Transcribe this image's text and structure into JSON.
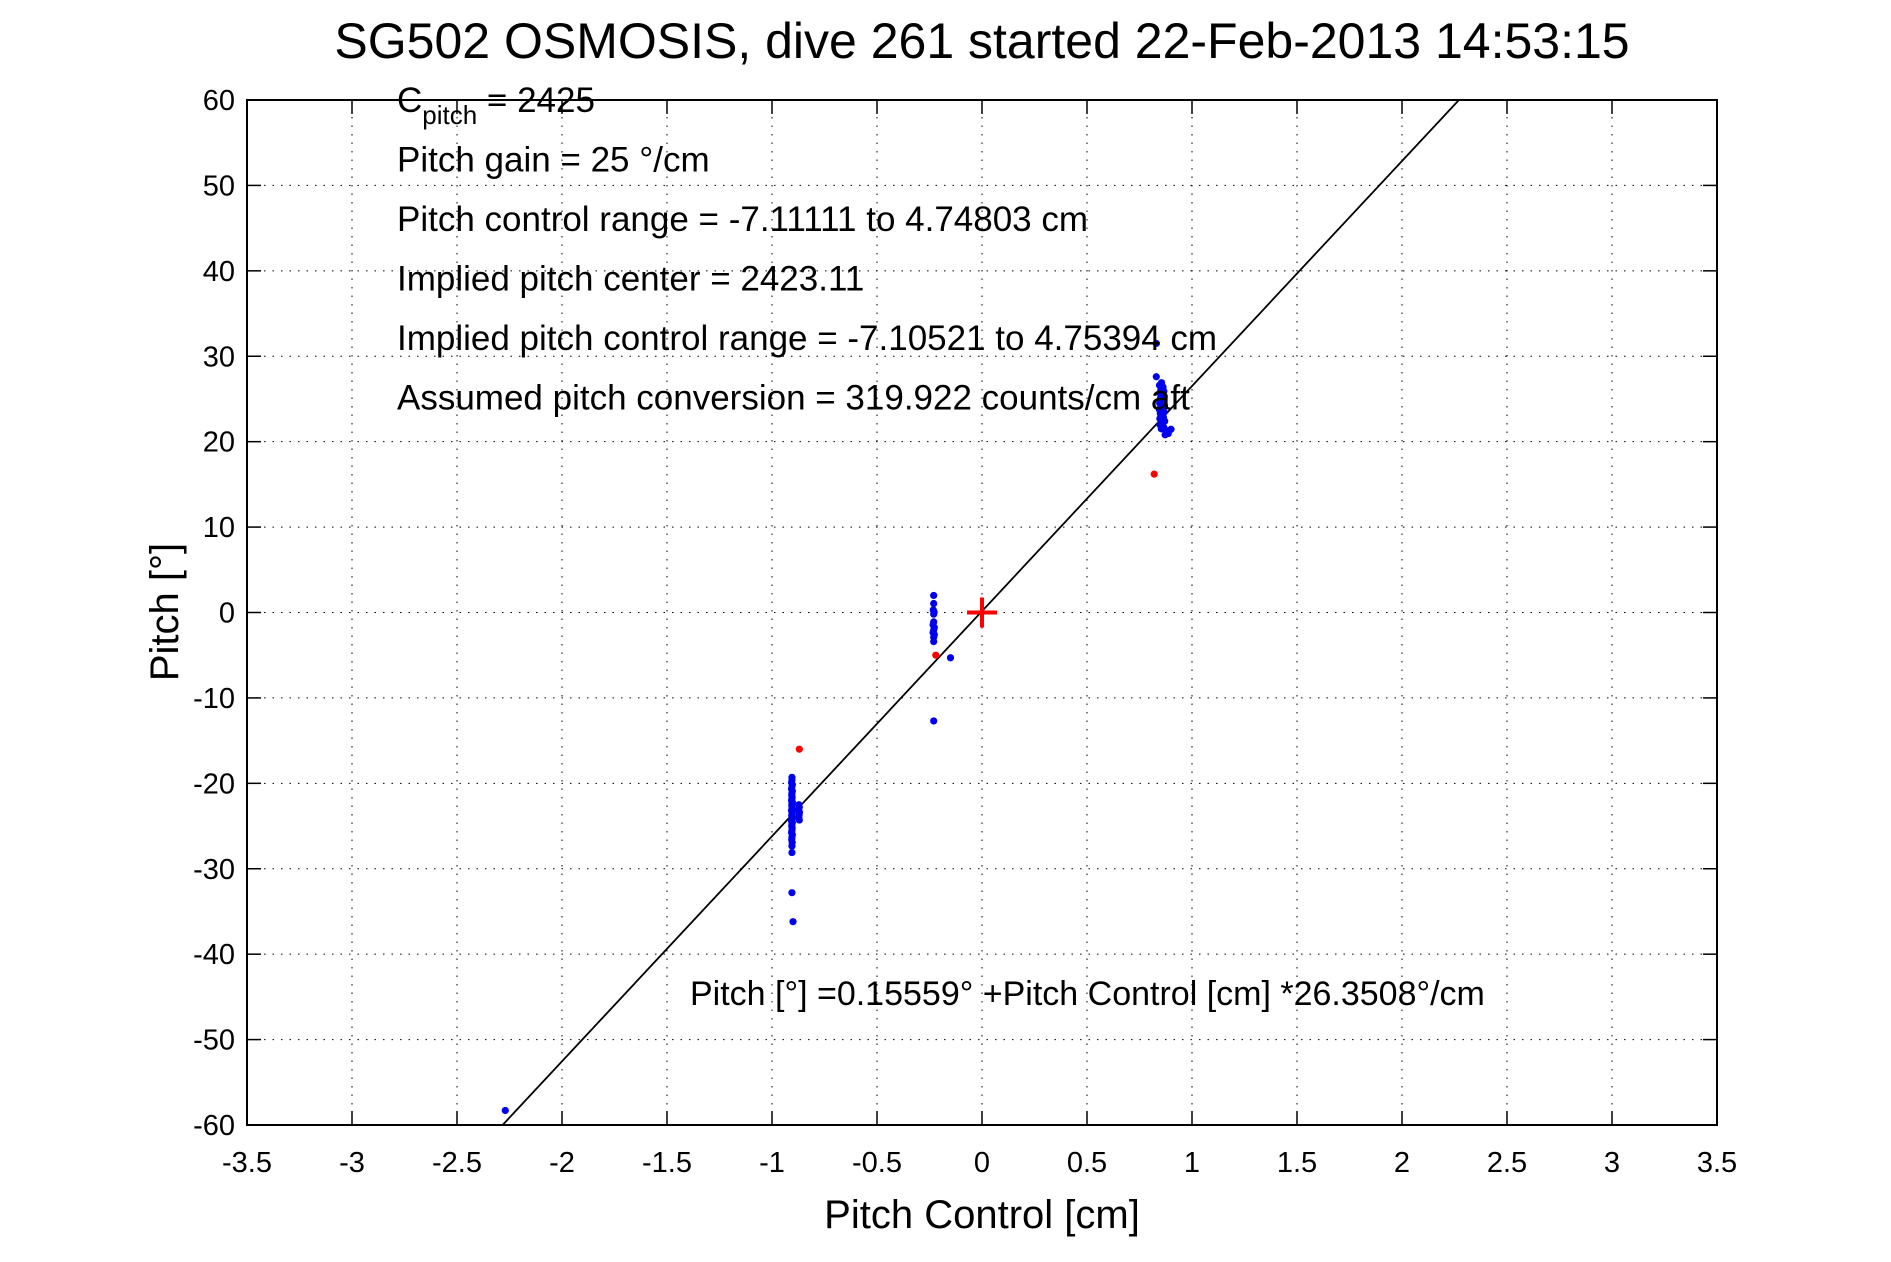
{
  "title": "SG502 OSMOSIS, dive 261 started 22-Feb-2013 14:53:15",
  "chart_data": {
    "type": "scatter",
    "title": "SG502 OSMOSIS, dive 261 started 22-Feb-2013 14:53:15",
    "xlabel": "Pitch Control [cm]",
    "ylabel": "Pitch [°]",
    "xlim": [
      -3.5,
      3.5
    ],
    "ylim": [
      -60,
      60
    ],
    "xticks": [
      -3.5,
      -3,
      -2.5,
      -2,
      -1.5,
      -1,
      -0.5,
      0,
      0.5,
      1,
      1.5,
      2,
      2.5,
      3,
      3.5
    ],
    "xtick_labels": [
      "-3.5",
      "-3",
      "-2.5",
      "-2",
      "-1.5",
      "-1",
      "-0.5",
      "0",
      "0.5",
      "1",
      "1.5",
      "2",
      "2.5",
      "3",
      "3.5"
    ],
    "yticks": [
      -60,
      -50,
      -40,
      -30,
      -20,
      -10,
      0,
      10,
      20,
      30,
      40,
      50,
      60
    ],
    "ytick_labels": [
      "-60",
      "-50",
      "-40",
      "-30",
      "-20",
      "-10",
      "0",
      "10",
      "20",
      "30",
      "40",
      "50",
      "60"
    ],
    "grid": true,
    "grid_style": "dotted",
    "colors": {
      "points": "#0000ee",
      "flagged": "#ff0000",
      "line": "#000000",
      "text": "#000000"
    },
    "annotations": [
      {
        "text": "C_pitch = 2425",
        "segments": [
          {
            "t": "C"
          },
          {
            "t": "pitch",
            "sub": true
          },
          {
            "t": " = 2425"
          }
        ]
      },
      {
        "text": "Pitch gain = 25 °/cm",
        "segments": [
          {
            "t": "Pitch gain = 25 °/cm"
          }
        ]
      },
      {
        "text": "Pitch control range = -7.11111 to 4.74803 cm",
        "segments": [
          {
            "t": "Pitch control range = -7.11111 to 4.74803 cm"
          }
        ]
      },
      {
        "text": "Implied pitch center = 2423.11",
        "segments": [
          {
            "t": "Implied pitch center = 2423.11"
          }
        ]
      },
      {
        "text": "Implied pitch control range = -7.10521 to 4.75394 cm",
        "segments": [
          {
            "t": "Implied pitch control range = -7.10521 to 4.75394 cm"
          }
        ]
      },
      {
        "text": "Assumed pitch conversion = 319.922 counts/cm aft",
        "segments": [
          {
            "t": "Assumed pitch conversion = 319.922 counts/cm aft"
          }
        ]
      }
    ],
    "equation": "Pitch [°] =0.15559° +Pitch Control [cm] *26.3508°/cm",
    "fit_line": {
      "intercept": 0.15559,
      "slope": 26.3508
    },
    "series": [
      {
        "name": "pitch-observations-blue",
        "marker": "dot",
        "color": "#0000ee",
        "points": [
          [
            0.83,
            31.5
          ],
          [
            0.83,
            27.6
          ],
          [
            0.855,
            26.9
          ],
          [
            0.845,
            26.6
          ],
          [
            0.862,
            26.4
          ],
          [
            0.852,
            26.1
          ],
          [
            0.866,
            25.9
          ],
          [
            0.847,
            25.7
          ],
          [
            0.858,
            25.5
          ],
          [
            0.868,
            25.3
          ],
          [
            0.85,
            25.1
          ],
          [
            0.861,
            24.95
          ],
          [
            0.853,
            24.8
          ],
          [
            0.865,
            24.65
          ],
          [
            0.846,
            24.5
          ],
          [
            0.857,
            24.35
          ],
          [
            0.869,
            24.2
          ],
          [
            0.851,
            24.05
          ],
          [
            0.862,
            23.9
          ],
          [
            0.845,
            23.75
          ],
          [
            0.856,
            23.6
          ],
          [
            0.867,
            23.45
          ],
          [
            0.849,
            23.3
          ],
          [
            0.86,
            23.15
          ],
          [
            0.853,
            23.0
          ],
          [
            0.864,
            22.85
          ],
          [
            0.847,
            22.7
          ],
          [
            0.858,
            22.55
          ],
          [
            0.87,
            22.4
          ],
          [
            0.852,
            22.25
          ],
          [
            0.861,
            22.1
          ],
          [
            0.848,
            21.95
          ],
          [
            0.857,
            21.8
          ],
          [
            0.866,
            21.65
          ],
          [
            0.854,
            21.5
          ],
          [
            0.875,
            21.35
          ],
          [
            0.885,
            21.2
          ],
          [
            0.9,
            21.45
          ],
          [
            0.872,
            20.8
          ],
          [
            0.887,
            20.95
          ],
          [
            -0.23,
            2.0
          ],
          [
            -0.23,
            1.05
          ],
          [
            -0.232,
            0.3
          ],
          [
            -0.228,
            0.05
          ],
          [
            -0.23,
            -0.2
          ],
          [
            -0.23,
            -1.1
          ],
          [
            -0.233,
            -1.45
          ],
          [
            -0.227,
            -1.75
          ],
          [
            -0.23,
            -2.05
          ],
          [
            -0.233,
            -2.35
          ],
          [
            -0.227,
            -2.6
          ],
          [
            -0.23,
            -2.9
          ],
          [
            -0.23,
            -3.4
          ],
          [
            -0.15,
            -5.3
          ],
          [
            -0.23,
            -12.7
          ],
          [
            -0.905,
            -19.3
          ],
          [
            -0.905,
            -19.6
          ],
          [
            -0.907,
            -19.9
          ],
          [
            -0.903,
            -20.15
          ],
          [
            -0.905,
            -20.4
          ],
          [
            -0.907,
            -20.65
          ],
          [
            -0.903,
            -20.9
          ],
          [
            -0.905,
            -21.15
          ],
          [
            -0.906,
            -21.4
          ],
          [
            -0.904,
            -21.6
          ],
          [
            -0.905,
            -21.8
          ],
          [
            -0.907,
            -22.0
          ],
          [
            -0.903,
            -22.2
          ],
          [
            -0.905,
            -22.4
          ],
          [
            -0.906,
            -22.6
          ],
          [
            -0.904,
            -22.8
          ],
          [
            -0.905,
            -23.0
          ],
          [
            -0.907,
            -23.2
          ],
          [
            -0.903,
            -23.4
          ],
          [
            -0.905,
            -23.6
          ],
          [
            -0.906,
            -23.8
          ],
          [
            -0.904,
            -24.0
          ],
          [
            -0.905,
            -24.2
          ],
          [
            -0.907,
            -24.4
          ],
          [
            -0.903,
            -24.6
          ],
          [
            -0.905,
            -24.8
          ],
          [
            -0.906,
            -25.0
          ],
          [
            -0.904,
            -25.25
          ],
          [
            -0.905,
            -25.5
          ],
          [
            -0.907,
            -25.75
          ],
          [
            -0.903,
            -26.0
          ],
          [
            -0.905,
            -26.3
          ],
          [
            -0.906,
            -26.6
          ],
          [
            -0.904,
            -26.95
          ],
          [
            -0.905,
            -27.35
          ],
          [
            -0.905,
            -28.1
          ],
          [
            -0.872,
            -22.5
          ],
          [
            -0.87,
            -22.8
          ],
          [
            -0.873,
            -23.1
          ],
          [
            -0.869,
            -23.4
          ],
          [
            -0.871,
            -23.7
          ],
          [
            -0.872,
            -24.0
          ],
          [
            -0.87,
            -24.3
          ],
          [
            -0.905,
            -32.8
          ],
          [
            -0.9,
            -36.2
          ],
          [
            -2.27,
            -58.3
          ]
        ]
      },
      {
        "name": "pitch-observations-red",
        "marker": "dot",
        "color": "#ff0000",
        "points": [
          [
            0.82,
            16.2
          ],
          [
            -0.22,
            -5.0
          ],
          [
            -0.87,
            -16.0
          ]
        ]
      },
      {
        "name": "implied-center-marker",
        "marker": "plus",
        "color": "#ff0000",
        "points": [
          [
            0,
            0
          ]
        ]
      }
    ]
  }
}
